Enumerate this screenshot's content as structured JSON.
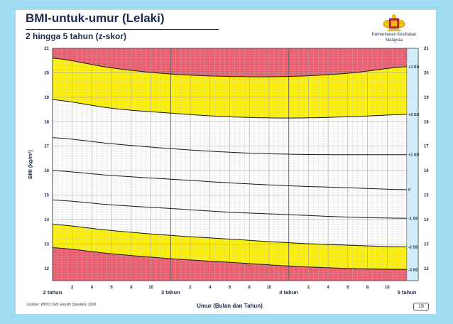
{
  "header": {
    "title": "BMI-untuk-umur (Lelaki)",
    "subtitle": "2 hingga 5 tahun (z-skor)",
    "ministry_line1": "Kementerian Kesihatan",
    "ministry_line2": "Malaysia"
  },
  "footer": {
    "source": "Sumber: WHO Child Growth Standard, 2006",
    "page_number": "19"
  },
  "colors": {
    "page_bg": "#9fdcf2",
    "severe_band": "#ec5a6b",
    "moderate_band": "#fef200",
    "normal_band": "#ffffff",
    "right_strip": "#d3eef9",
    "curve": "#1a1a1a",
    "grid": "#c8c8c8"
  },
  "chart_data": {
    "type": "line",
    "title": "BMI-untuk-umur (Lelaki)",
    "subtitle": "2 hingga 5 tahun (z-skor)",
    "xlabel": "Umur (Bulan dan Tahun)",
    "ylabel": "BMI (kg/m²)",
    "xlim": [
      24,
      60
    ],
    "ylim": [
      11.5,
      21
    ],
    "y_ticks": [
      12,
      13,
      14,
      15,
      16,
      17,
      18,
      19,
      20,
      21
    ],
    "x_ticks": [
      {
        "m": 24,
        "label": "2 tahun",
        "major": true
      },
      {
        "m": 26,
        "label": "2"
      },
      {
        "m": 28,
        "label": "4"
      },
      {
        "m": 30,
        "label": "6"
      },
      {
        "m": 32,
        "label": "8"
      },
      {
        "m": 34,
        "label": "10"
      },
      {
        "m": 36,
        "label": "3 tahun",
        "major": true
      },
      {
        "m": 38,
        "label": "2"
      },
      {
        "m": 40,
        "label": "4"
      },
      {
        "m": 42,
        "label": "6"
      },
      {
        "m": 44,
        "label": "8"
      },
      {
        "m": 46,
        "label": "10"
      },
      {
        "m": 48,
        "label": "4 tahun",
        "major": true
      },
      {
        "m": 50,
        "label": "2"
      },
      {
        "m": 52,
        "label": "4"
      },
      {
        "m": 54,
        "label": "6"
      },
      {
        "m": 56,
        "label": "8"
      },
      {
        "m": 58,
        "label": "10"
      },
      {
        "m": 60,
        "label": "5 tahun",
        "major": true
      }
    ],
    "x": [
      24,
      30,
      36,
      42,
      48,
      54,
      60
    ],
    "series": [
      {
        "name": "+3 SD",
        "values": [
          20.6,
          20.2,
          19.95,
          19.85,
          19.85,
          19.98,
          20.25
        ]
      },
      {
        "name": "+2 SD",
        "values": [
          18.9,
          18.55,
          18.35,
          18.2,
          18.15,
          18.2,
          18.3
        ]
      },
      {
        "name": "+1 SD",
        "values": [
          17.35,
          17.1,
          16.9,
          16.75,
          16.67,
          16.65,
          16.65
        ]
      },
      {
        "name": "0",
        "values": [
          16.0,
          15.8,
          15.65,
          15.5,
          15.38,
          15.3,
          15.22
        ]
      },
      {
        "name": "-1 SD",
        "values": [
          14.8,
          14.6,
          14.45,
          14.3,
          14.2,
          14.1,
          14.05
        ]
      },
      {
        "name": "-2 SD",
        "values": [
          13.8,
          13.55,
          13.35,
          13.2,
          13.05,
          12.95,
          12.88
        ]
      },
      {
        "name": "-3 SD",
        "values": [
          12.85,
          12.6,
          12.4,
          12.25,
          12.1,
          12.0,
          11.95
        ]
      }
    ]
  }
}
